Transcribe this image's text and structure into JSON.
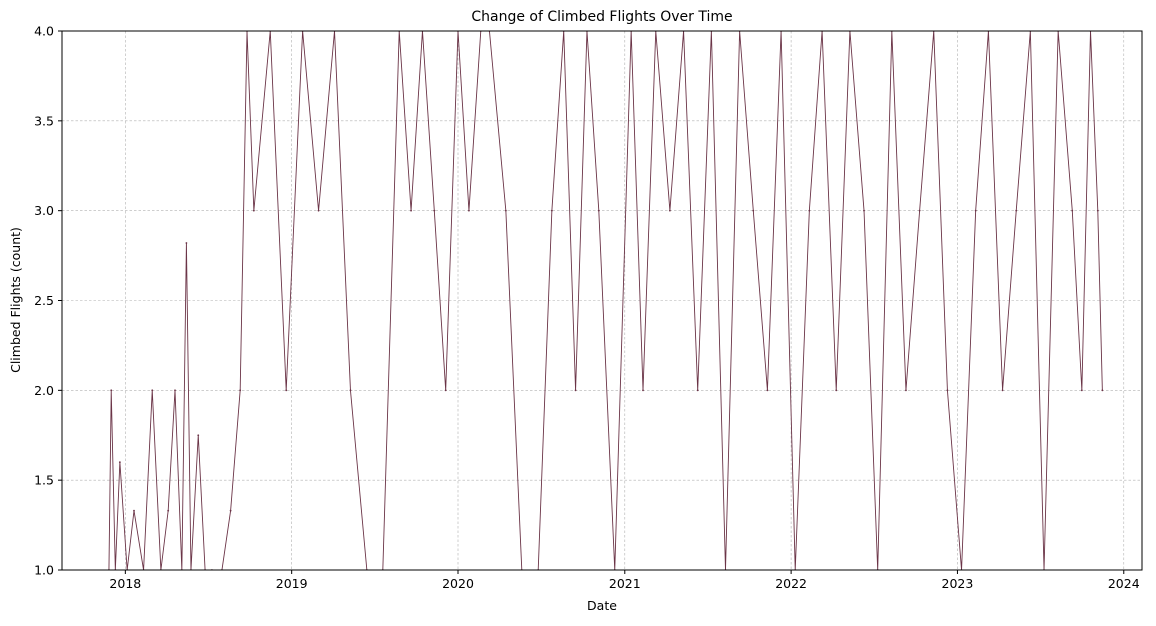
{
  "chart_data": {
    "type": "line",
    "title": "Change of Climbed Flights Over Time",
    "xlabel": "Date",
    "ylabel": "Climbed Flights (count)",
    "x_range": [
      "2017-08-15",
      "2024-02-10"
    ],
    "ylim": [
      1.0,
      4.0
    ],
    "x_ticks": [
      "2018",
      "2019",
      "2020",
      "2021",
      "2022",
      "2023",
      "2024"
    ],
    "y_ticks": [
      "1.0",
      "1.5",
      "2.0",
      "2.5",
      "3.0",
      "3.5",
      "4.0"
    ],
    "grid": true,
    "legend": "none",
    "colors": {
      "primary": "#6b3447",
      "secondary": "#c9a6b3",
      "grid": "#b0b0b0"
    },
    "series": [
      {
        "style": "dense oscillating line",
        "x": [
          "2017-11-26",
          "2017-12-01",
          "2017-12-10",
          "2017-12-20",
          "2018-01-05",
          "2018-01-20",
          "2018-02-10",
          "2018-03-01",
          "2018-03-20",
          "2018-04-05",
          "2018-04-20",
          "2018-05-05",
          "2018-05-15",
          "2018-05-25",
          "2018-06-10",
          "2018-06-25",
          "2018-07-10",
          "2018-08-01",
          "2018-08-20",
          "2018-09-10",
          "2018-09-25",
          "2018-10-10",
          "2018-11-15",
          "2018-12-20",
          "2019-01-25",
          "2019-03-01",
          "2019-04-05",
          "2019-05-10",
          "2019-06-15",
          "2019-07-20",
          "2019-08-25",
          "2019-09-20",
          "2019-10-15",
          "2019-11-10",
          "2019-12-05",
          "2020-01-01",
          "2020-01-25",
          "2020-02-20",
          "2020-03-10",
          "2020-04-15",
          "2020-05-20",
          "2020-06-25",
          "2020-07-25",
          "2020-08-20",
          "2020-09-15",
          "2020-10-10",
          "2020-11-05",
          "2020-12-10",
          "2021-01-15",
          "2021-02-10",
          "2021-03-10",
          "2021-04-10",
          "2021-05-10",
          "2021-06-10",
          "2021-07-10",
          "2021-08-10",
          "2021-09-10",
          "2021-10-10",
          "2021-11-10",
          "2021-12-10",
          "2022-01-10",
          "2022-02-10",
          "2022-03-10",
          "2022-04-10",
          "2022-05-10",
          "2022-06-10",
          "2022-07-10",
          "2022-08-10",
          "2022-09-10",
          "2022-10-10",
          "2022-11-10",
          "2022-12-10",
          "2023-01-10",
          "2023-02-10",
          "2023-03-10",
          "2023-04-10",
          "2023-05-10",
          "2023-06-10",
          "2023-07-10",
          "2023-08-10",
          "2023-09-10",
          "2023-10-01",
          "2023-10-20",
          "2023-11-05",
          "2023-11-15"
        ],
        "y": [
          1.0,
          2.0,
          1.0,
          1.6,
          1.0,
          1.33,
          1.0,
          2.0,
          1.0,
          1.33,
          2.0,
          1.0,
          2.82,
          1.0,
          1.75,
          1.0,
          1.0,
          1.0,
          1.33,
          2.0,
          4.0,
          3.0,
          4.0,
          2.0,
          4.0,
          3.0,
          4.0,
          2.0,
          1.0,
          1.0,
          4.0,
          3.0,
          4.0,
          3.0,
          2.0,
          4.0,
          3.0,
          4.0,
          4.0,
          3.0,
          1.0,
          1.0,
          3.0,
          4.0,
          2.0,
          4.0,
          3.0,
          1.0,
          4.0,
          2.0,
          4.0,
          3.0,
          4.0,
          2.0,
          4.0,
          1.0,
          4.0,
          3.0,
          2.0,
          4.0,
          1.0,
          3.0,
          4.0,
          2.0,
          4.0,
          3.0,
          1.0,
          4.0,
          2.0,
          3.0,
          4.0,
          2.0,
          1.0,
          3.0,
          4.0,
          2.0,
          3.0,
          4.0,
          1.0,
          4.0,
          3.0,
          2.0,
          4.0,
          3.0,
          2.0
        ]
      }
    ]
  }
}
